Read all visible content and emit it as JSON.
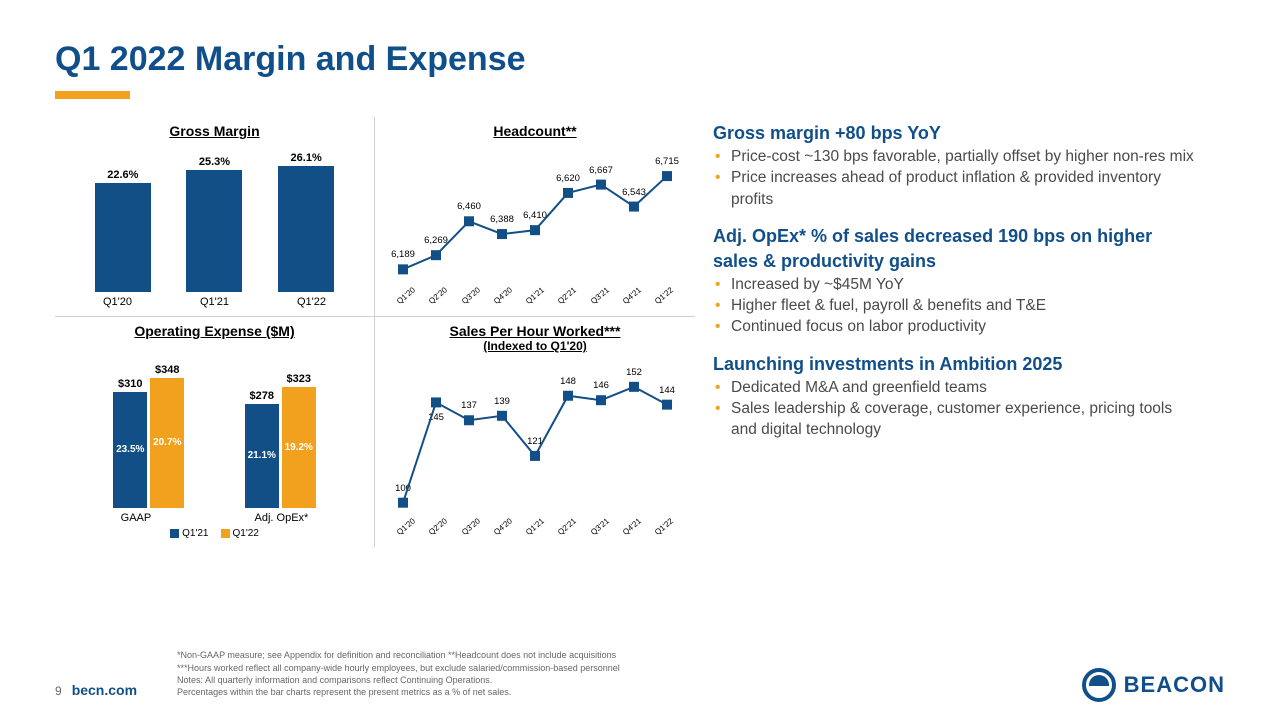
{
  "colors": {
    "title": "#114f8a",
    "accent": "#f2a11f",
    "text": "#4a4a4a",
    "bullet": "#f2a11f",
    "bar_primary": "#134f87",
    "bar_secondary": "#f2a11f",
    "marker": "#134f87",
    "line": "#134f87"
  },
  "title": "Q1 2022 Margin and Expense",
  "gross_margin": {
    "title": "Gross Margin",
    "categories": [
      "Q1'20",
      "Q1'21",
      "Q1'22"
    ],
    "labels": [
      "22.6%",
      "25.3%",
      "26.1%"
    ],
    "values": [
      22.6,
      25.3,
      26.1
    ],
    "ymax": 27
  },
  "headcount": {
    "title": "Headcount**",
    "categories": [
      "Q1'20",
      "Q2'20",
      "Q3'20",
      "Q4'20",
      "Q1'21",
      "Q2'21",
      "Q3'21",
      "Q4'21",
      "Q1'22"
    ],
    "labels": [
      "6,189",
      "6,269",
      "6,460",
      "6,388",
      "6,410",
      "6,620",
      "6,667",
      "6,543",
      "6,715"
    ],
    "values": [
      6189,
      6269,
      6460,
      6388,
      6410,
      6620,
      6667,
      6543,
      6715
    ],
    "ymin": 6050,
    "ymax": 6800
  },
  "opex": {
    "title": "Operating Expense ($M)",
    "groups": [
      "GAAP",
      "Adj. OpEx*"
    ],
    "series_labels": [
      "Q1'21",
      "Q1'22"
    ],
    "top_labels": [
      [
        "$310",
        "$348"
      ],
      [
        "$278",
        "$323"
      ]
    ],
    "in_labels": [
      [
        "23.5%",
        "20.7%"
      ],
      [
        "21.1%",
        "19.2%"
      ]
    ],
    "values": [
      [
        310,
        348
      ],
      [
        278,
        323
      ]
    ],
    "ymax": 360
  },
  "sph": {
    "title": "Sales Per Hour Worked***",
    "sub": "(Indexed to Q1'20)",
    "categories": [
      "Q1'20",
      "Q2'20",
      "Q3'20",
      "Q4'20",
      "Q1'21",
      "Q2'21",
      "Q3'21",
      "Q4'21",
      "Q1'22"
    ],
    "labels": [
      "100",
      "145",
      "137",
      "139",
      "121",
      "148",
      "146",
      "152",
      "144"
    ],
    "values": [
      100,
      145,
      137,
      139,
      121,
      148,
      146,
      152,
      144
    ],
    "ymin": 90,
    "ymax": 160
  },
  "bullets": {
    "h1": "Gross margin +80 bps YoY",
    "b1": [
      "Price-cost ~130 bps favorable, partially offset by higher non-res mix",
      "Price increases ahead of product inflation & provided inventory profits"
    ],
    "h2": "Adj. OpEx* % of sales decreased 190 bps on higher sales & productivity gains",
    "b2": [
      "Increased by ~$45M YoY",
      "Higher fleet & fuel, payroll & benefits and T&E",
      "Continued focus on labor productivity"
    ],
    "h3": "Launching investments in Ambition 2025",
    "b3": [
      "Dedicated M&A and greenfield teams",
      "Sales leadership & coverage, customer experience, pricing tools and digital technology"
    ]
  },
  "footer": {
    "page": "9",
    "url": "becn.com",
    "n1": "*Non-GAAP measure; see Appendix for definition and reconciliation      **Headcount does not include acquisitions",
    "n2": "***Hours worked reflect all company-wide hourly employees, but exclude salaried/commission-based personnel",
    "n3": "Notes:   All quarterly information and comparisons reflect Continuing Operations.",
    "n4": "              Percentages within the bar charts represent the present metrics as a % of net sales.",
    "logo": "BEACON"
  }
}
